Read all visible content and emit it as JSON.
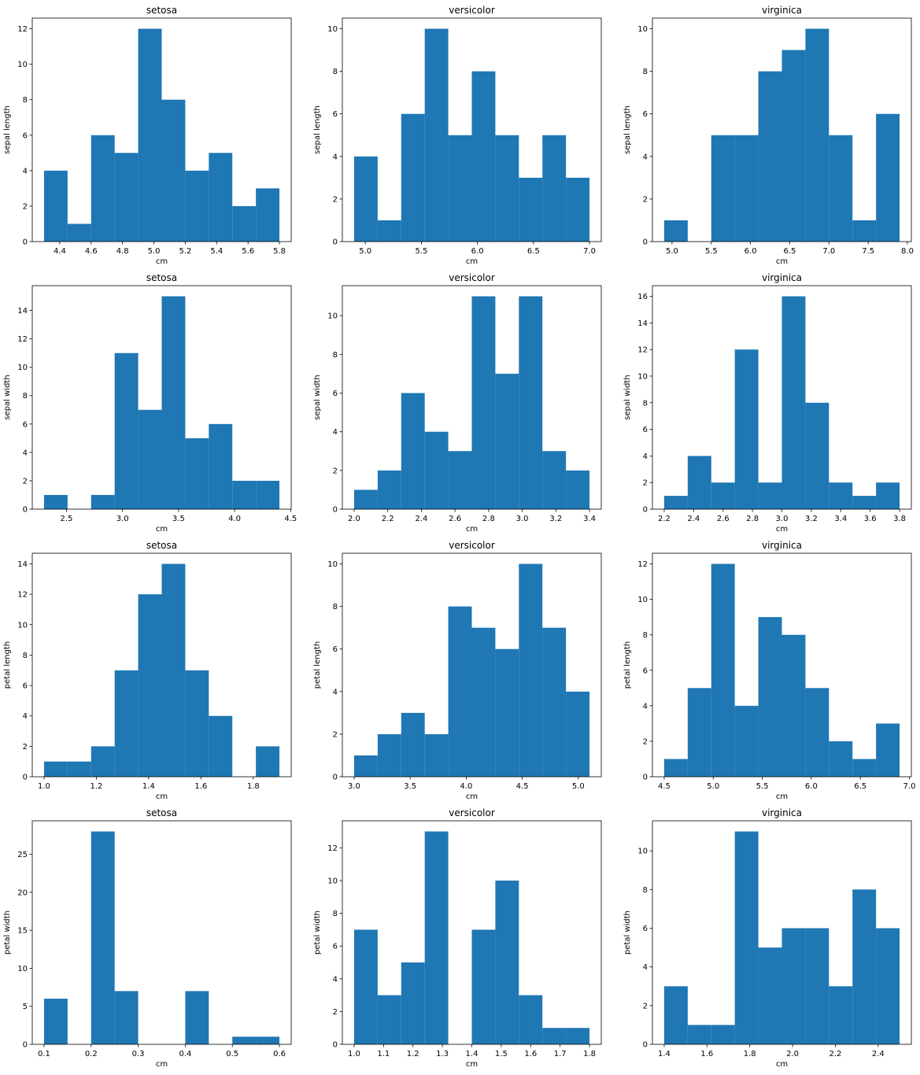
{
  "style": {
    "bar_color": "#1f77b4"
  },
  "chart_data": [
    {
      "type": "histogram",
      "title": "setosa",
      "xlabel": "cm",
      "ylabel": "sepal length",
      "range": [
        4.3,
        5.8
      ],
      "counts": [
        4,
        1,
        6,
        5,
        12,
        8,
        4,
        5,
        2,
        3
      ],
      "xlim": [
        4.225,
        5.875
      ],
      "ylim": [
        0,
        12.6
      ],
      "xticks": [
        4.4,
        4.6,
        4.8,
        5.0,
        5.2,
        5.4,
        5.6,
        5.8
      ],
      "xtick_labels": [
        "4.4",
        "4.6",
        "4.8",
        "5.0",
        "5.2",
        "5.4",
        "5.6",
        "5.8"
      ],
      "yticks": [
        0,
        2,
        4,
        6,
        8,
        10,
        12
      ],
      "ytick_labels": [
        "0",
        "2",
        "4",
        "6",
        "8",
        "10",
        "12"
      ]
    },
    {
      "type": "histogram",
      "title": "versicolor",
      "xlabel": "cm",
      "ylabel": "sepal length",
      "range": [
        4.9,
        7.0
      ],
      "counts": [
        4,
        1,
        6,
        10,
        5,
        8,
        5,
        3,
        5,
        3
      ],
      "xlim": [
        4.795,
        7.105
      ],
      "ylim": [
        0,
        10.5
      ],
      "xticks": [
        5.0,
        5.5,
        6.0,
        6.5,
        7.0
      ],
      "xtick_labels": [
        "5.0",
        "5.5",
        "6.0",
        "6.5",
        "7.0"
      ],
      "yticks": [
        0,
        2,
        4,
        6,
        8,
        10
      ],
      "ytick_labels": [
        "0",
        "2",
        "4",
        "6",
        "8",
        "10"
      ]
    },
    {
      "type": "histogram",
      "title": "virginica",
      "xlabel": "cm",
      "ylabel": "sepal length",
      "range": [
        4.9,
        7.9
      ],
      "counts": [
        1,
        0,
        5,
        5,
        8,
        9,
        10,
        5,
        1,
        6
      ],
      "xlim": [
        4.75,
        8.05
      ],
      "ylim": [
        0,
        10.5
      ],
      "xticks": [
        5.0,
        5.5,
        6.0,
        6.5,
        7.0,
        7.5,
        8.0
      ],
      "xtick_labels": [
        "5.0",
        "5.5",
        "6.0",
        "6.5",
        "7.0",
        "7.5",
        "8.0"
      ],
      "yticks": [
        0,
        2,
        4,
        6,
        8,
        10
      ],
      "ytick_labels": [
        "0",
        "2",
        "4",
        "6",
        "8",
        "10"
      ]
    },
    {
      "type": "histogram",
      "title": "setosa",
      "xlabel": "cm",
      "ylabel": "sepal width",
      "range": [
        2.3,
        4.4
      ],
      "counts": [
        1,
        0,
        1,
        11,
        7,
        15,
        5,
        6,
        2,
        2
      ],
      "xlim": [
        2.195,
        4.505
      ],
      "ylim": [
        0,
        15.75
      ],
      "xticks": [
        2.5,
        3.0,
        3.5,
        4.0,
        4.5
      ],
      "xtick_labels": [
        "2.5",
        "3.0",
        "3.5",
        "4.0",
        "4.5"
      ],
      "yticks": [
        0,
        2,
        4,
        6,
        8,
        10,
        12,
        14
      ],
      "ytick_labels": [
        "0",
        "2",
        "4",
        "6",
        "8",
        "10",
        "12",
        "14"
      ]
    },
    {
      "type": "histogram",
      "title": "versicolor",
      "xlabel": "cm",
      "ylabel": "sepal width",
      "range": [
        2.0,
        3.4
      ],
      "counts": [
        1,
        2,
        6,
        4,
        3,
        11,
        7,
        11,
        3,
        2
      ],
      "xlim": [
        1.93,
        3.47
      ],
      "ylim": [
        0,
        11.55
      ],
      "xticks": [
        2.0,
        2.2,
        2.4,
        2.6,
        2.8,
        3.0,
        3.2,
        3.4
      ],
      "xtick_labels": [
        "2.0",
        "2.2",
        "2.4",
        "2.6",
        "2.8",
        "3.0",
        "3.2",
        "3.4"
      ],
      "yticks": [
        0,
        2,
        4,
        6,
        8,
        10
      ],
      "ytick_labels": [
        "0",
        "2",
        "4",
        "6",
        "8",
        "10"
      ]
    },
    {
      "type": "histogram",
      "title": "virginica",
      "xlabel": "cm",
      "ylabel": "sepal width",
      "range": [
        2.2,
        3.8
      ],
      "counts": [
        1,
        4,
        2,
        12,
        2,
        16,
        8,
        2,
        1,
        2
      ],
      "xlim": [
        2.12,
        3.88
      ],
      "ylim": [
        0,
        16.8
      ],
      "xticks": [
        2.2,
        2.4,
        2.6,
        2.8,
        3.0,
        3.2,
        3.4,
        3.6,
        3.8
      ],
      "xtick_labels": [
        "2.2",
        "2.4",
        "2.6",
        "2.8",
        "3.0",
        "3.2",
        "3.4",
        "3.6",
        "3.8"
      ],
      "yticks": [
        0,
        2,
        4,
        6,
        8,
        10,
        12,
        14,
        16
      ],
      "ytick_labels": [
        "0",
        "2",
        "4",
        "6",
        "8",
        "10",
        "12",
        "14",
        "16"
      ]
    },
    {
      "type": "histogram",
      "title": "setosa",
      "xlabel": "cm",
      "ylabel": "petal length",
      "range": [
        1.0,
        1.9
      ],
      "counts": [
        1,
        1,
        2,
        7,
        12,
        14,
        7,
        4,
        0,
        2
      ],
      "xlim": [
        0.955,
        1.945
      ],
      "ylim": [
        0,
        14.7
      ],
      "xticks": [
        1.0,
        1.2,
        1.4,
        1.6,
        1.8
      ],
      "xtick_labels": [
        "1.0",
        "1.2",
        "1.4",
        "1.6",
        "1.8"
      ],
      "yticks": [
        0,
        2,
        4,
        6,
        8,
        10,
        12,
        14
      ],
      "ytick_labels": [
        "0",
        "2",
        "4",
        "6",
        "8",
        "10",
        "12",
        "14"
      ]
    },
    {
      "type": "histogram",
      "title": "versicolor",
      "xlabel": "cm",
      "ylabel": "petal length",
      "range": [
        3.0,
        5.1
      ],
      "counts": [
        1,
        2,
        3,
        2,
        8,
        7,
        6,
        10,
        7,
        4
      ],
      "xlim": [
        2.895,
        5.205
      ],
      "ylim": [
        0,
        10.5
      ],
      "xticks": [
        3.0,
        3.5,
        4.0,
        4.5,
        5.0
      ],
      "xtick_labels": [
        "3.0",
        "3.5",
        "4.0",
        "4.5",
        "5.0"
      ],
      "yticks": [
        0,
        2,
        4,
        6,
        8,
        10
      ],
      "ytick_labels": [
        "0",
        "2",
        "4",
        "6",
        "8",
        "10"
      ]
    },
    {
      "type": "histogram",
      "title": "virginica",
      "xlabel": "cm",
      "ylabel": "petal length",
      "range": [
        4.5,
        6.9
      ],
      "counts": [
        1,
        5,
        12,
        4,
        9,
        8,
        5,
        2,
        1,
        3
      ],
      "xlim": [
        4.38,
        7.02
      ],
      "ylim": [
        0,
        12.6
      ],
      "xticks": [
        4.5,
        5.0,
        5.5,
        6.0,
        6.5,
        7.0
      ],
      "xtick_labels": [
        "4.5",
        "5.0",
        "5.5",
        "6.0",
        "6.5",
        "7.0"
      ],
      "yticks": [
        0,
        2,
        4,
        6,
        8,
        10,
        12
      ],
      "ytick_labels": [
        "0",
        "2",
        "4",
        "6",
        "8",
        "10",
        "12"
      ]
    },
    {
      "type": "histogram",
      "title": "setosa",
      "xlabel": "cm",
      "ylabel": "petal width",
      "range": [
        0.1,
        0.6
      ],
      "counts": [
        6,
        0,
        28,
        7,
        0,
        0,
        7,
        0,
        1,
        1
      ],
      "xlim": [
        0.075,
        0.625
      ],
      "ylim": [
        0,
        29.4
      ],
      "xticks": [
        0.1,
        0.2,
        0.3,
        0.4,
        0.5,
        0.6
      ],
      "xtick_labels": [
        "0.1",
        "0.2",
        "0.3",
        "0.4",
        "0.5",
        "0.6"
      ],
      "yticks": [
        0,
        5,
        10,
        15,
        20,
        25
      ],
      "ytick_labels": [
        "0",
        "5",
        "10",
        "15",
        "20",
        "25"
      ]
    },
    {
      "type": "histogram",
      "title": "versicolor",
      "xlabel": "cm",
      "ylabel": "petal width",
      "range": [
        1.0,
        1.8
      ],
      "counts": [
        7,
        3,
        5,
        13,
        0,
        7,
        10,
        3,
        1,
        1
      ],
      "xlim": [
        0.96,
        1.84
      ],
      "ylim": [
        0,
        13.65
      ],
      "xticks": [
        1.0,
        1.1,
        1.2,
        1.3,
        1.4,
        1.5,
        1.6,
        1.7,
        1.8
      ],
      "xtick_labels": [
        "1.0",
        "1.1",
        "1.2",
        "1.3",
        "1.4",
        "1.5",
        "1.6",
        "1.7",
        "1.8"
      ],
      "yticks": [
        0,
        2,
        4,
        6,
        8,
        10,
        12
      ],
      "ytick_labels": [
        "0",
        "2",
        "4",
        "6",
        "8",
        "10",
        "12"
      ]
    },
    {
      "type": "histogram",
      "title": "virginica",
      "xlabel": "cm",
      "ylabel": "petal width",
      "range": [
        1.4,
        2.5
      ],
      "counts": [
        3,
        1,
        1,
        11,
        5,
        6,
        6,
        3,
        8,
        6
      ],
      "xlim": [
        1.345,
        2.555
      ],
      "ylim": [
        0,
        11.55
      ],
      "xticks": [
        1.4,
        1.6,
        1.8,
        2.0,
        2.2,
        2.4
      ],
      "xtick_labels": [
        "1.4",
        "1.6",
        "1.8",
        "2.0",
        "2.2",
        "2.4"
      ],
      "yticks": [
        0,
        2,
        4,
        6,
        8,
        10
      ],
      "ytick_labels": [
        "0",
        "2",
        "4",
        "6",
        "8",
        "10"
      ]
    }
  ]
}
